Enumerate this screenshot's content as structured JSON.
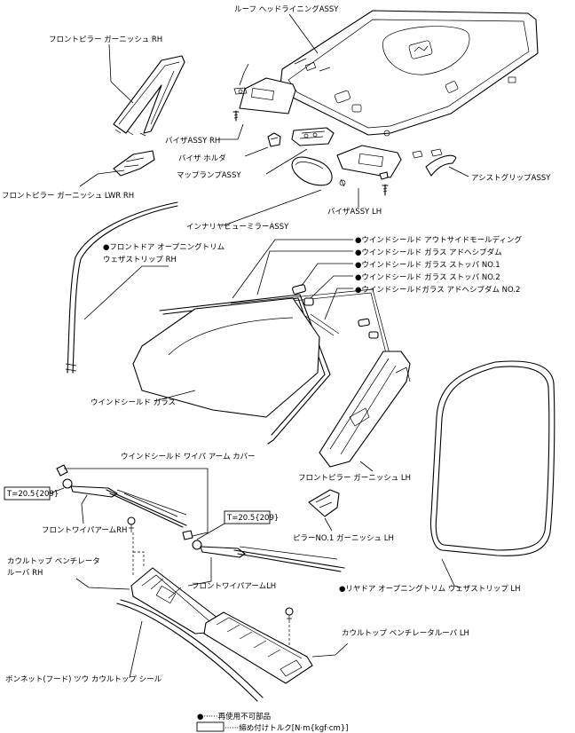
{
  "labels": {
    "roof_headlining": "ルーフ ヘッドライニングASSY",
    "front_pillar_garnish_rh": "フロントピラー ガーニッシュ RH",
    "visor_rh": "バイザASSY RH",
    "visor_holder": "バイザ ホルダ",
    "map_lamp": "マップランプASSY",
    "front_pillar_garnish_lwr_rh": "フロントピラー ガーニッシュ LWR RH",
    "assist_grip": "アシストグリップASSY",
    "visor_lh": "バイザASSY LH",
    "inner_mirror": "インナリヤビューミラーASSY",
    "front_door_ws_line1": "●フロントドア オープニングトリム",
    "front_door_ws_line2": "ウェザストリップ RH",
    "ws_outside_molding": "●ウインドシールド アウトサイドモールディング",
    "ws_glass_dam": "●ウインドシールド ガラス アドヘシブダム",
    "ws_stopper_1": "●ウインドシールド ガラス ストッパ NO.1",
    "ws_stopper_2": "●ウインドシールド ガラス ストッパ NO.2",
    "ws_glass_dam_2": "●ウインドシールドガラス アドヘシブダム NO.2",
    "windshield_glass": "ウインドシールド ガラス",
    "wiper_arm_cover": "ウインドシールド ワイパ アーム カバー",
    "front_pillar_garnish_lh": "フロントピラー ガーニッシュ LH",
    "torque_rh": "T=20.5{209}",
    "wiper_arm_rh": "フロントワイパアームRH",
    "torque_lh": "T=20.5{209}",
    "pillar_no1_garnish": "ピラーNO.1 ガーニッシュ LH",
    "cowl_louver_rh_line1": "カウルトップ ベンチレータ",
    "cowl_louver_rh_line2": "ルーバ RH",
    "wiper_arm_lh": "フロントワイパアームLH",
    "rear_door_ws": "●リヤドア オープニングトリム ウェザストリップ LH",
    "cowl_louver_lh": "カウルトップ ベンチレータルーバ LH",
    "bonnet_seal": "ボンネット(フード) ツウ カウルトップ シール"
  },
  "legend": {
    "non_reusable": "●······再使用不可部品",
    "torque": "······締め付けトルク[N·m{kgf·cm}]"
  }
}
